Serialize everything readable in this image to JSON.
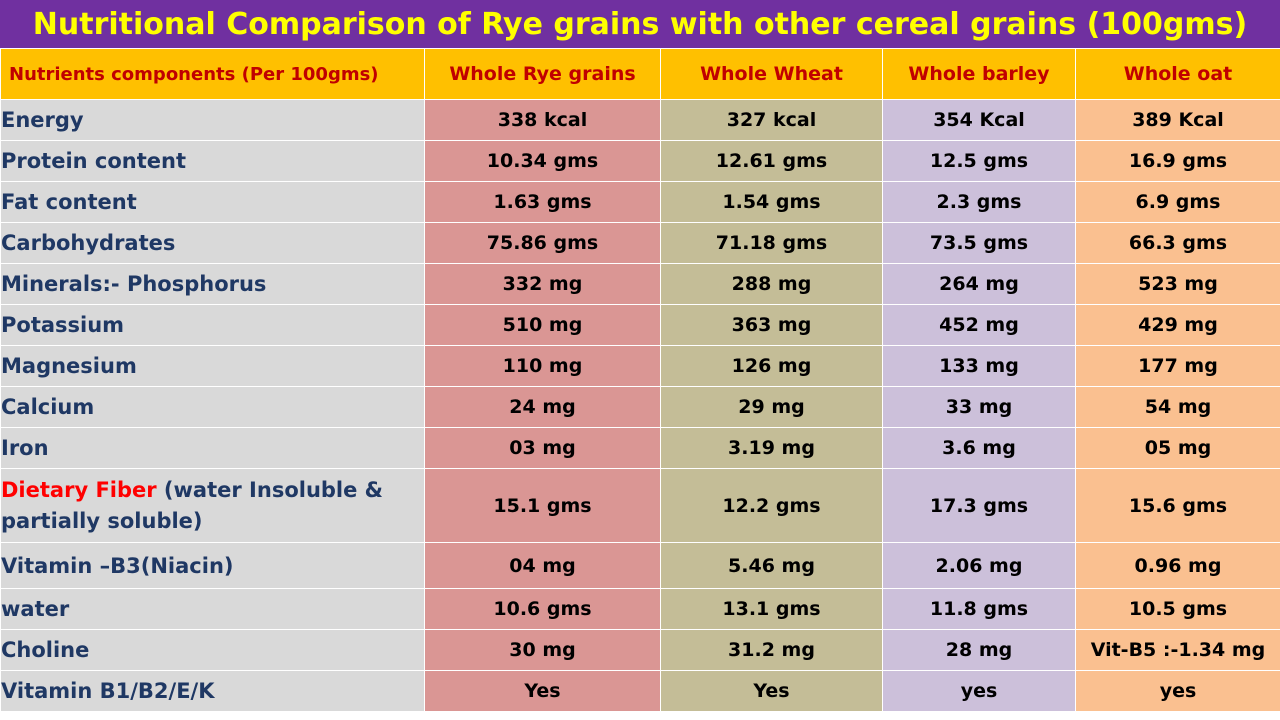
{
  "title": "Nutritional Comparison of Rye grains with other cereal grains (100gms)",
  "headers": [
    "Nutrients components (Per 100gms)",
    "Whole Rye grains",
    "Whole Wheat",
    "Whole barley",
    "Whole oat"
  ],
  "colors": {
    "title_bg": "#7030a0",
    "title_text": "#ffff00",
    "header_bg": "#ffc000",
    "header_text": "#c00000",
    "name_bg": "#d9d9d9",
    "name_text": "#1f3864",
    "rye_bg": "#da9694",
    "wheat_bg": "#c4bd97",
    "barley_bg": "#ccc0da",
    "oat_bg": "#fac090",
    "highlight": "#ff0000"
  },
  "rows": [
    {
      "name": "Energy",
      "values": [
        "338 kcal",
        "327 kcal",
        "354 Kcal",
        "389 Kcal"
      ]
    },
    {
      "name": "Protein content",
      "values": [
        "10.34 gms",
        "12.61 gms",
        "12.5 gms",
        "16.9 gms"
      ]
    },
    {
      "name": "Fat content",
      "values": [
        "1.63 gms",
        "1.54 gms",
        "2.3 gms",
        "6.9 gms"
      ]
    },
    {
      "name": "Carbohydrates",
      "values": [
        "75.86 gms",
        "71.18 gms",
        "73.5 gms",
        "66.3 gms"
      ]
    },
    {
      "name": "Minerals:- Phosphorus",
      "values": [
        "332 mg",
        "288 mg",
        "264 mg",
        "523 mg"
      ]
    },
    {
      "name": "Potassium",
      "values": [
        "510 mg",
        "363 mg",
        "452 mg",
        "429 mg"
      ]
    },
    {
      "name": "Magnesium",
      "values": [
        "110 mg",
        "126 mg",
        "133 mg",
        "177 mg"
      ]
    },
    {
      "name": "Calcium",
      "values": [
        "24 mg",
        "29 mg",
        "33 mg",
        "54 mg"
      ]
    },
    {
      "name": "Iron",
      "values": [
        "03 mg",
        "3.19 mg",
        "3.6 mg",
        "05 mg"
      ]
    },
    {
      "name_highlight": "Dietary Fiber",
      "name_rest": " (water Insoluble & partially soluble)",
      "values": [
        "15.1 gms",
        "12.2 gms",
        "17.3  gms",
        "15.6  gms"
      ]
    },
    {
      "name": "Vitamin –B3(Niacin)",
      "values": [
        "04 mg",
        "5.46 mg",
        "2.06 mg",
        "0.96 mg"
      ]
    },
    {
      "name": "water",
      "values": [
        "10.6 gms",
        "13.1  gms",
        "11.8 gms",
        "10.5 gms"
      ]
    },
    {
      "name": "Choline",
      "values": [
        "30 mg",
        "31.2 mg",
        "28 mg",
        "Vit-B5 :-1.34 mg"
      ]
    },
    {
      "name": "Vitamin B1/B2/E/K",
      "values": [
        "Yes",
        "Yes",
        "yes",
        "yes"
      ]
    }
  ]
}
